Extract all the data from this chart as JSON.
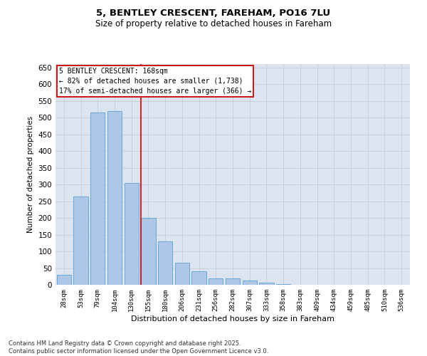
{
  "title_line1": "5, BENTLEY CRESCENT, FAREHAM, PO16 7LU",
  "title_line2": "Size of property relative to detached houses in Fareham",
  "xlabel": "Distribution of detached houses by size in Fareham",
  "ylabel": "Number of detached properties",
  "bins": [
    "28sqm",
    "53sqm",
    "79sqm",
    "104sqm",
    "130sqm",
    "155sqm",
    "180sqm",
    "206sqm",
    "231sqm",
    "256sqm",
    "282sqm",
    "307sqm",
    "333sqm",
    "358sqm",
    "383sqm",
    "409sqm",
    "434sqm",
    "459sqm",
    "485sqm",
    "510sqm",
    "536sqm"
  ],
  "values": [
    30,
    265,
    515,
    520,
    305,
    200,
    130,
    65,
    40,
    20,
    20,
    13,
    7,
    3,
    1,
    0.5,
    0,
    0,
    0,
    0,
    0
  ],
  "bar_color": "#aec6e8",
  "bar_edge_color": "#5a9fd4",
  "annotation_text_line1": "5 BENTLEY CRESCENT: 168sqm",
  "annotation_text_line2": "← 82% of detached houses are smaller (1,738)",
  "annotation_text_line3": "17% of semi-detached houses are larger (366) →",
  "annotation_box_color": "#ffffff",
  "annotation_box_edge": "#cc0000",
  "vline_color": "#cc0000",
  "vline_x": 4.56,
  "ylim": [
    0,
    660
  ],
  "yticks": [
    0,
    50,
    100,
    150,
    200,
    250,
    300,
    350,
    400,
    450,
    500,
    550,
    600,
    650
  ],
  "grid_color": "#c8d0dc",
  "background_color": "#dce4f0",
  "footer_line1": "Contains HM Land Registry data © Crown copyright and database right 2025.",
  "footer_line2": "Contains public sector information licensed under the Open Government Licence v3.0."
}
